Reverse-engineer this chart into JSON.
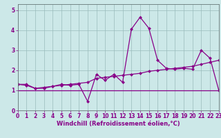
{
  "xlabel": "Windchill (Refroidissement éolien,°C)",
  "bg_color": "#cce8e8",
  "line_color": "#880088",
  "x": [
    0,
    1,
    2,
    3,
    4,
    5,
    6,
    7,
    8,
    9,
    10,
    11,
    12,
    13,
    14,
    15,
    16,
    17,
    18,
    19,
    20,
    21,
    22,
    23
  ],
  "y_main": [
    1.3,
    1.25,
    1.1,
    1.1,
    1.2,
    1.3,
    1.25,
    1.3,
    0.45,
    1.8,
    1.5,
    1.8,
    1.4,
    4.05,
    4.65,
    4.1,
    2.5,
    2.1,
    2.05,
    2.1,
    2.05,
    3.0,
    2.6,
    1.0
  ],
  "y_diag": [
    1.3,
    1.3,
    1.1,
    1.15,
    1.2,
    1.25,
    1.3,
    1.35,
    1.4,
    1.6,
    1.65,
    1.7,
    1.75,
    1.8,
    1.85,
    1.95,
    2.0,
    2.05,
    2.1,
    2.15,
    2.2,
    2.3,
    2.4,
    2.5
  ],
  "y_flat": [
    1.0,
    1.0,
    1.0,
    1.0,
    1.0,
    1.0,
    1.0,
    1.0,
    1.0,
    1.0,
    1.0,
    1.0,
    1.0,
    1.0,
    1.0,
    1.0,
    1.0,
    1.0,
    1.0,
    1.0,
    1.0,
    1.0,
    1.0,
    1.0
  ],
  "xlim": [
    0,
    23
  ],
  "ylim": [
    0,
    5.3
  ],
  "yticks": [
    0,
    1,
    2,
    3,
    4,
    5
  ],
  "xticks": [
    0,
    1,
    2,
    3,
    4,
    5,
    6,
    7,
    8,
    9,
    10,
    11,
    12,
    13,
    14,
    15,
    16,
    17,
    18,
    19,
    20,
    21,
    22,
    23
  ],
  "grid_color": "#99bbbb",
  "markersize": 2.5,
  "linewidth": 0.9,
  "tick_fontsize": 5.5,
  "xlabel_fontsize": 6.0
}
